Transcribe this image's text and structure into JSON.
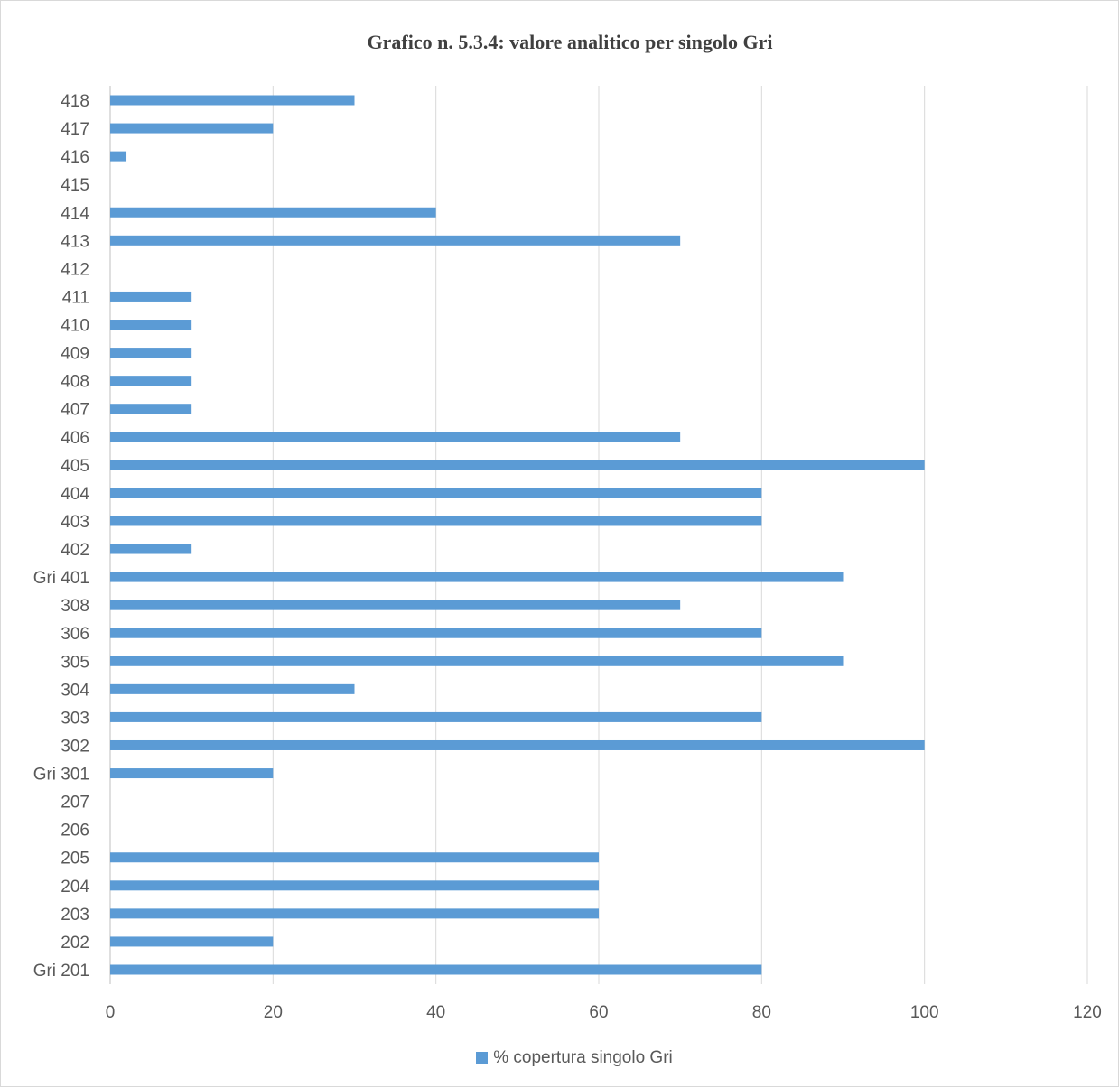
{
  "chart_data": {
    "type": "bar",
    "orientation": "horizontal",
    "title": "Grafico n. 5.3.4: valore analitico per singolo Gri",
    "xlabel": "",
    "ylabel": "",
    "xlim": [
      0,
      120
    ],
    "x_ticks": [
      0,
      20,
      40,
      60,
      80,
      100,
      120
    ],
    "grid": true,
    "legend_position": "bottom",
    "bar_color": "#5b9bd5",
    "categories": [
      "Gri 201",
      "202",
      "203",
      "204",
      "205",
      "206",
      "207",
      "Gri 301",
      "302",
      "303",
      "304",
      "305",
      "306",
      "308",
      "Gri 401",
      "402",
      "403",
      "404",
      "405",
      "406",
      "407",
      "408",
      "409",
      "410",
      "411",
      "412",
      "413",
      "414",
      "415",
      "416",
      "417",
      "418"
    ],
    "series": [
      {
        "name": "% copertura singolo Gri",
        "values": [
          80,
          20,
          60,
          60,
          60,
          0,
          0,
          20,
          100,
          80,
          30,
          90,
          80,
          70,
          90,
          10,
          80,
          80,
          100,
          70,
          10,
          10,
          10,
          10,
          10,
          0,
          70,
          40,
          0,
          2,
          20,
          30
        ]
      }
    ]
  }
}
